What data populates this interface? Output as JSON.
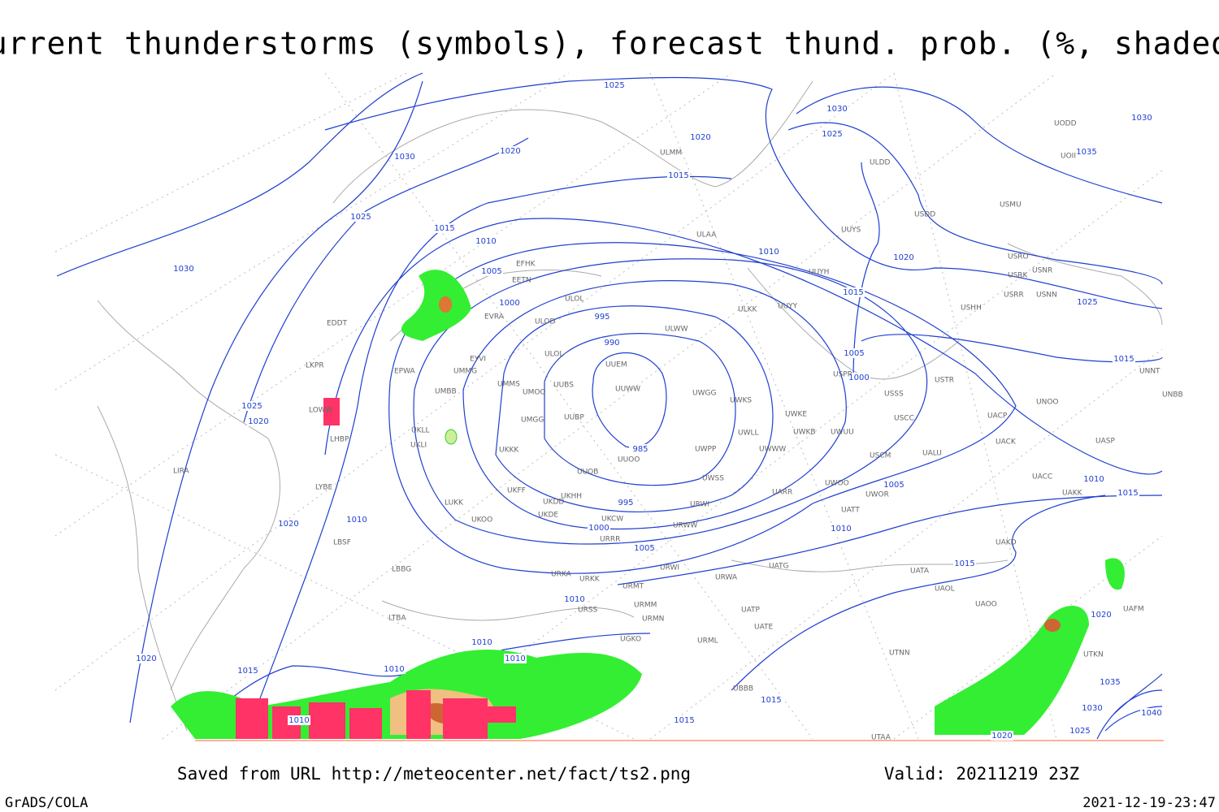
{
  "header": {
    "title": "Current thunderstorms (symbols), forecast thund. prob. (%, shaded)"
  },
  "footer": {
    "source": "Saved from URL http://meteocenter.net/fact/ts2.png",
    "valid": "Valid: 20211219 23Z",
    "software": "GrADS/COLA",
    "timestamp": "2021-12-19-23:47"
  },
  "isobar_labels": [
    1025,
    1030,
    1025,
    1020,
    1015,
    1030,
    1020,
    1025,
    1015,
    1010,
    1010,
    1030,
    1005,
    1000,
    995,
    990,
    985,
    995,
    1000,
    1005,
    1010,
    1020,
    1025,
    1020,
    1020,
    1015,
    1005,
    1000,
    1025,
    1015,
    1005,
    1010,
    1010,
    1015,
    1015,
    1010,
    1010,
    1010,
    1010,
    1015,
    1020,
    1010,
    1015,
    1015,
    1020,
    1035,
    1030,
    1025,
    1020,
    1040,
    1035,
    1030
  ],
  "station_codes": [
    "ULMM",
    "ULDD",
    "USMU",
    "USDD",
    "UUYS",
    "ULAA",
    "USRO",
    "USRK",
    "USNR",
    "USRR",
    "USNN",
    "UUYH",
    "EFHK",
    "EETN",
    "ULOL",
    "ULKK",
    "UUYY",
    "USHH",
    "EVRA",
    "ULOD",
    "ULWW",
    "EDDT",
    "EYVI",
    "ULOL",
    "UUEM",
    "UMMG",
    "EPWA",
    "LKPR",
    "UMMS",
    "UMOO",
    "UUBS",
    "UUWW",
    "UWGG",
    "UWKS",
    "USPP",
    "USTR",
    "USSS",
    "UNNT",
    "UNBB",
    "UNOO",
    "UMBB",
    "LOWW",
    "UMGG",
    "UUBP",
    "UWKE",
    "UWKB",
    "UWUU",
    "USCC",
    "UACP",
    "LHBP",
    "UKLL",
    "UKLI",
    "UWLL",
    "UKKK",
    "UWPP",
    "UWWW",
    "UUOO",
    "USCM",
    "UALU",
    "UACK",
    "UASP",
    "LIRA",
    "UUOB",
    "UWSS",
    "UACC",
    "LYBE",
    "UKFF",
    "UKDD",
    "UKHH",
    "UARR",
    "UWOO",
    "UWOR",
    "UAKK",
    "LUKK",
    "URWI",
    "UKOO",
    "UKDE",
    "UKCW",
    "UATT",
    "URWW",
    "LBSF",
    "URRR",
    "UAKD",
    "LBBG",
    "URWI",
    "UATG",
    "UATA",
    "URKA",
    "URKK",
    "URMT",
    "URWA",
    "UAOL",
    "UAOO",
    "URSS",
    "URMM",
    "UATP",
    "LTBA",
    "URMN",
    "UATE",
    "URML",
    "UTNN",
    "UGKO",
    "UBBB",
    "UTKN",
    "UAFM",
    "UTAA",
    "UODD",
    "UOII"
  ]
}
